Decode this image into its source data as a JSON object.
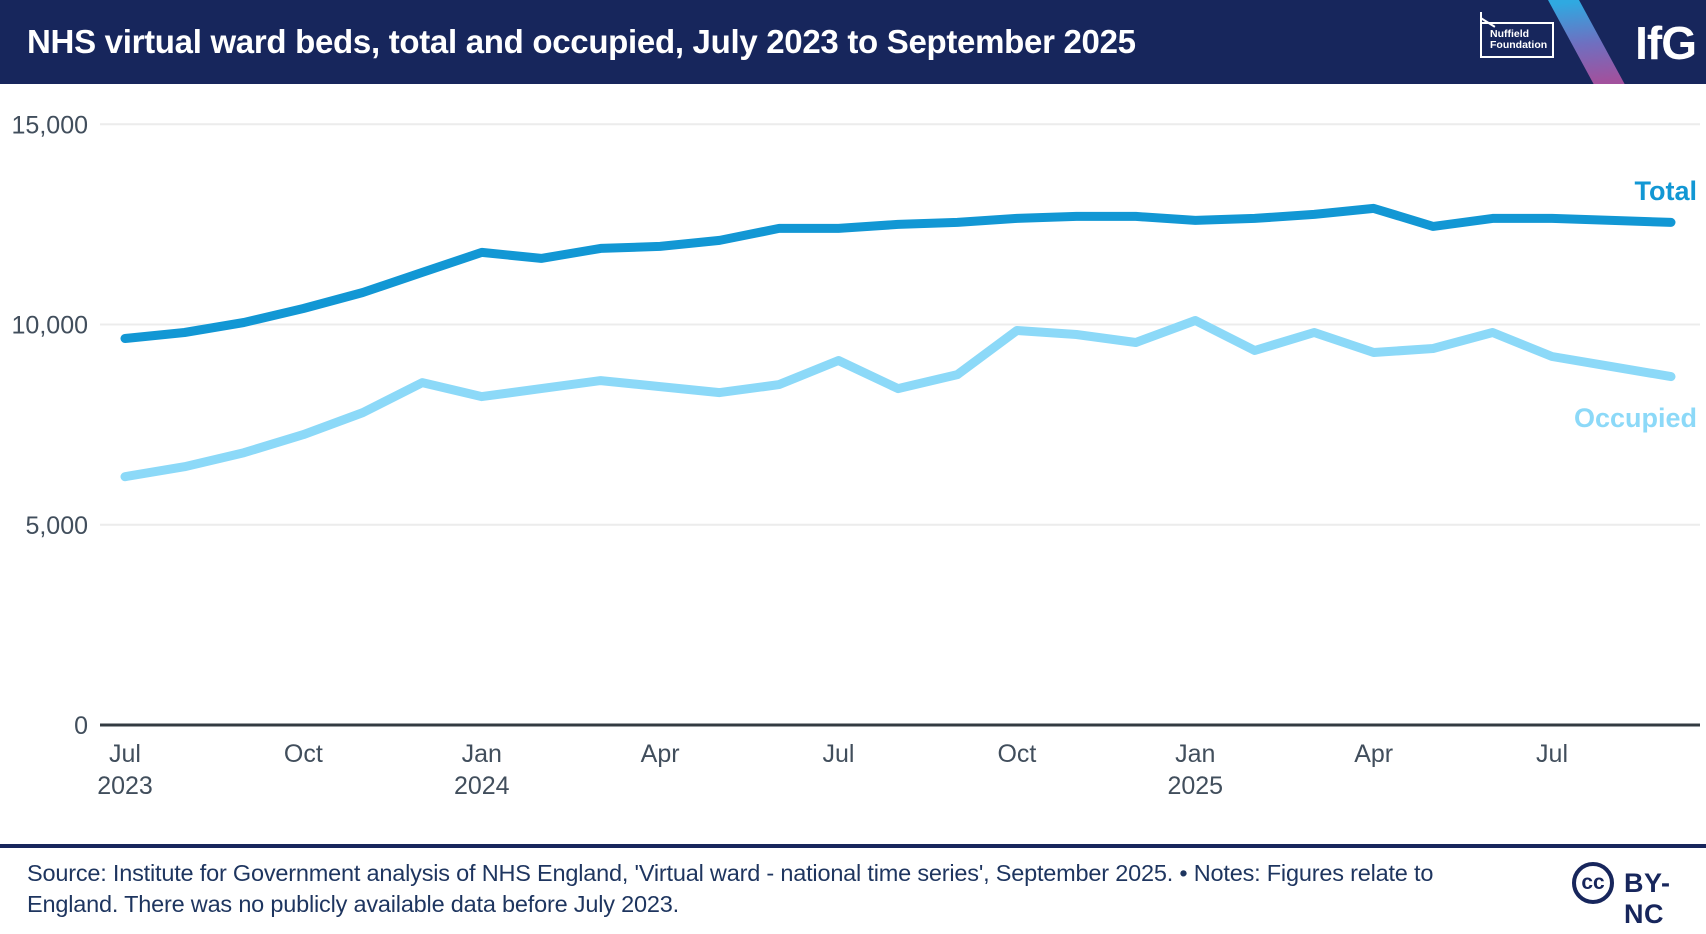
{
  "header": {
    "title": "NHS virtual ward beds, total and occupied, July 2023 to September 2025",
    "nuffield_line1": "Nuffield",
    "nuffield_line2": "Foundation",
    "ifg_logo": "IfG"
  },
  "chart_data": {
    "type": "line",
    "title": "NHS virtual ward beds, total and occupied, July 2023 to September 2025",
    "xlabel": "",
    "ylabel": "",
    "ylim": [
      0,
      15000
    ],
    "grid": "horizontal",
    "legend_position": "end-of-line labels",
    "x_tick_step_months": 3,
    "x": [
      "Jul 2023",
      "Aug 2023",
      "Sep 2023",
      "Oct 2023",
      "Nov 2023",
      "Dec 2023",
      "Jan 2024",
      "Feb 2024",
      "Mar 2024",
      "Apr 2024",
      "May 2024",
      "Jun 2024",
      "Jul 2024",
      "Aug 2024",
      "Sep 2024",
      "Oct 2024",
      "Nov 2024",
      "Dec 2024",
      "Jan 2025",
      "Feb 2025",
      "Mar 2025",
      "Apr 2025",
      "May 2025",
      "Jun 2025",
      "Jul 2025",
      "Aug 2025",
      "Sep 2025"
    ],
    "y_ticks": [
      {
        "label": "0",
        "value": 0
      },
      {
        "label": "5,000",
        "value": 5000
      },
      {
        "label": "10,000",
        "value": 10000
      },
      {
        "label": "15,000",
        "value": 15000
      }
    ],
    "x_ticks": [
      {
        "label": "Jul",
        "year": "2023",
        "month_index": 0
      },
      {
        "label": "Oct",
        "month_index": 3
      },
      {
        "label": "Jan",
        "year": "2024",
        "month_index": 6
      },
      {
        "label": "Apr",
        "month_index": 9
      },
      {
        "label": "Jul",
        "month_index": 12
      },
      {
        "label": "Oct",
        "month_index": 15
      },
      {
        "label": "Jan",
        "year": "2025",
        "month_index": 18
      },
      {
        "label": "Apr",
        "month_index": 21
      },
      {
        "label": "Jul",
        "month_index": 24
      }
    ],
    "series": [
      {
        "name": "Total",
        "color": "#1297D4",
        "values": [
          9650,
          9800,
          10050,
          10400,
          10800,
          11300,
          11800,
          11650,
          11900,
          11950,
          12100,
          12400,
          12400,
          12500,
          12550,
          12650,
          12700,
          12700,
          12600,
          12650,
          12750,
          12900,
          12450,
          12650,
          12650,
          12600,
          12550
        ]
      },
      {
        "name": "Occupied",
        "color": "#8CD9F8",
        "values": [
          6200,
          6450,
          6800,
          7250,
          7800,
          8550,
          8200,
          8400,
          8600,
          8450,
          8300,
          8500,
          9100,
          8400,
          8750,
          9850,
          9750,
          9550,
          10100,
          9350,
          9800,
          9300,
          9400,
          9800,
          9200,
          8950,
          8700
        ]
      }
    ]
  },
  "footer": {
    "source_text": "Source: Institute for Government analysis of NHS England, 'Virtual ward - national time series', September 2025. • Notes: Figures relate to England. There was no publicly available data before July 2023.",
    "cc_label": "cc",
    "license": "BY-NC"
  }
}
